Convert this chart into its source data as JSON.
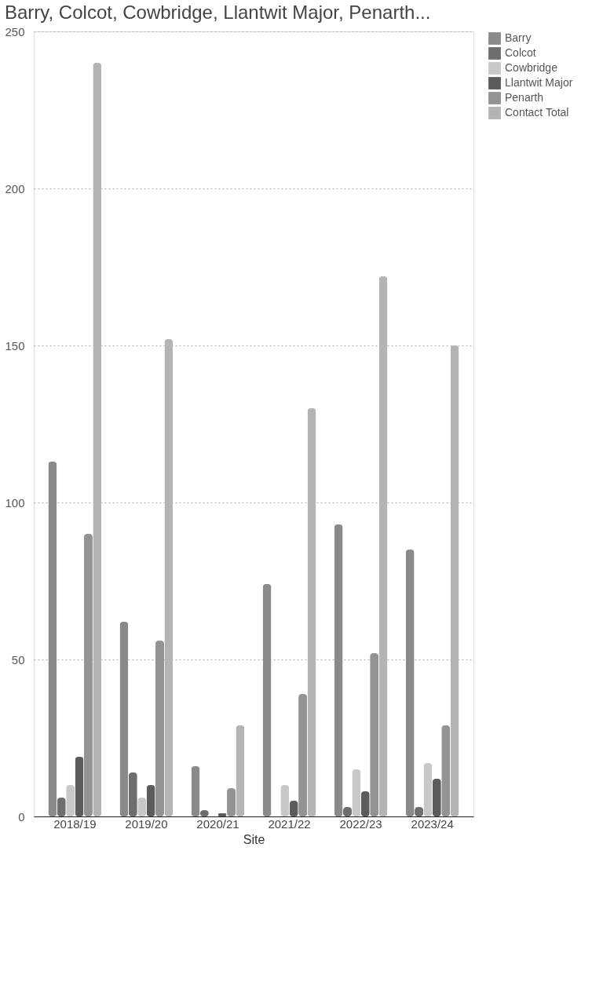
{
  "chart_data": {
    "type": "bar",
    "title": "Barry, Colcot, Cowbridge, Llantwit Major, Penarth...",
    "xlabel": "Site",
    "categories": [
      "2018/19",
      "2019/20",
      "2020/21",
      "2021/22",
      "2022/23",
      "2023/24"
    ],
    "series": [
      {
        "name": "Barry",
        "color": "#8a8a8a",
        "values": [
          113,
          62,
          16,
          74,
          93,
          85
        ]
      },
      {
        "name": "Colcot",
        "color": "#6e6e6e",
        "values": [
          6,
          14,
          2,
          0,
          3,
          3
        ]
      },
      {
        "name": "Cowbridge",
        "color": "#c8c8c8",
        "values": [
          10,
          6,
          0,
          10,
          15,
          17
        ]
      },
      {
        "name": "Llantwit Major",
        "color": "#5c5c5c",
        "values": [
          19,
          10,
          1,
          5,
          8,
          12
        ]
      },
      {
        "name": "Penarth",
        "color": "#939393",
        "values": [
          90,
          56,
          9,
          39,
          52,
          29
        ]
      },
      {
        "name": "Contact Total",
        "color": "#b4b4b4",
        "values": [
          240,
          152,
          29,
          130,
          172,
          150
        ]
      }
    ],
    "ylim": [
      0,
      250
    ],
    "yticks": [
      0,
      50,
      100,
      150,
      200,
      250
    ],
    "grid": "y",
    "legend": "top right"
  }
}
